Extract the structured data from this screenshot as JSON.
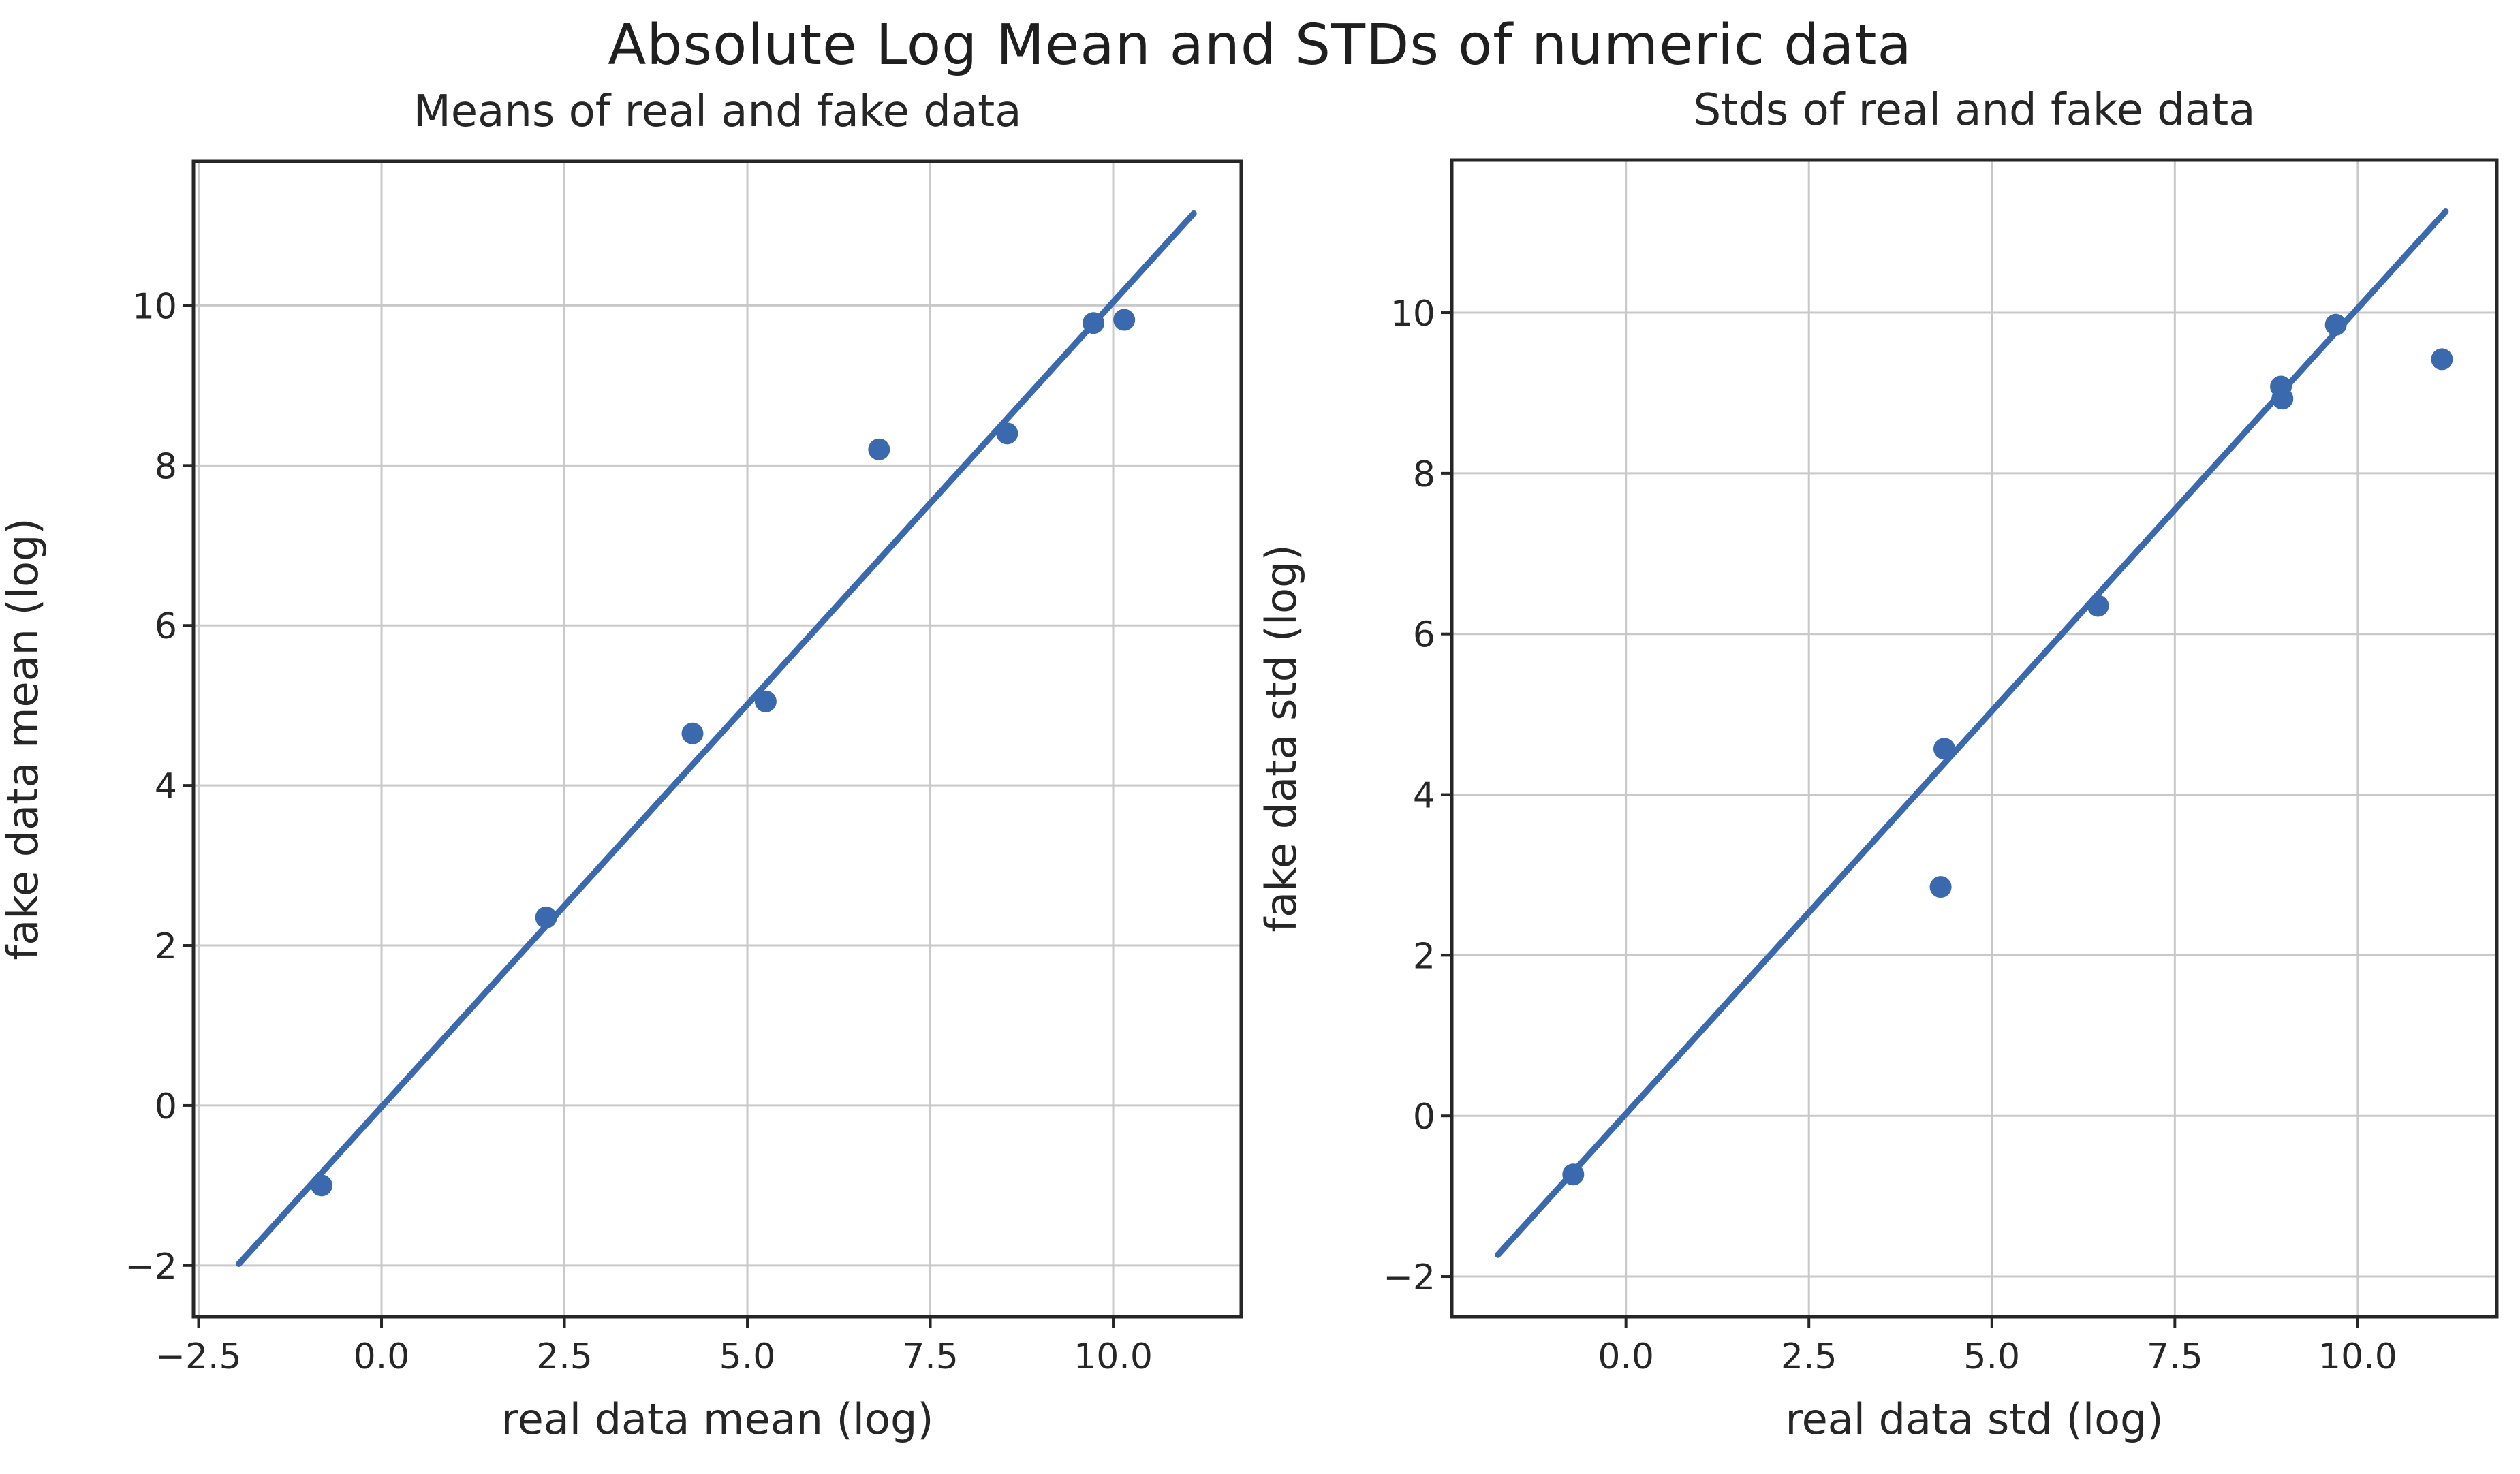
{
  "figure": {
    "title": "Absolute Log Mean and STDs of numeric data",
    "background_color": "#ffffff",
    "text_color": "#262626",
    "accent_color": "#3b69ae",
    "grid_color": "#c9c9c9",
    "spine_color": "#262626"
  },
  "chart_data": [
    {
      "type": "scatter",
      "title": "Means of real and fake data",
      "xlabel": "real data mean (log)",
      "ylabel": "fake data mean (log)",
      "xlim": [
        -2.57,
        11.75
      ],
      "ylim": [
        -2.64,
        11.8
      ],
      "xticks": [
        -2.5,
        0.0,
        2.5,
        5.0,
        7.5,
        10.0
      ],
      "xtick_labels": [
        "−2.5",
        "0.0",
        "2.5",
        "5.0",
        "7.5",
        "10.0"
      ],
      "yticks": [
        -2,
        0,
        2,
        4,
        6,
        8,
        10
      ],
      "ytick_labels": [
        "−2",
        "0",
        "2",
        "4",
        "6",
        "8",
        "10"
      ],
      "grid": true,
      "legend": "none",
      "points": [
        [
          -0.82,
          -1.0
        ],
        [
          2.25,
          2.35
        ],
        [
          4.25,
          4.65
        ],
        [
          5.25,
          5.05
        ],
        [
          6.8,
          8.2
        ],
        [
          8.55,
          8.4
        ],
        [
          9.73,
          9.78
        ],
        [
          10.15,
          9.82
        ]
      ],
      "trend_line": {
        "x1": -1.95,
        "y1": -1.98,
        "x2": 11.1,
        "y2": 11.15
      }
    },
    {
      "type": "scatter",
      "title": "Stds of real and fake data",
      "xlabel": "real data std (log)",
      "ylabel": "fake data std (log)",
      "xlim": [
        -2.38,
        11.9
      ],
      "ylim": [
        -2.5,
        11.9
      ],
      "xticks": [
        0.0,
        2.5,
        5.0,
        7.5,
        10.0
      ],
      "xtick_labels": [
        "0.0",
        "2.5",
        "5.0",
        "7.5",
        "10.0"
      ],
      "yticks": [
        -2,
        0,
        2,
        4,
        6,
        8,
        10
      ],
      "ytick_labels": [
        "−2",
        "0",
        "2",
        "4",
        "6",
        "8",
        "10"
      ],
      "grid": true,
      "legend": "none",
      "points": [
        [
          -0.72,
          -0.73
        ],
        [
          4.35,
          4.57
        ],
        [
          4.3,
          2.85
        ],
        [
          6.45,
          6.35
        ],
        [
          8.95,
          9.08
        ],
        [
          8.97,
          8.93
        ],
        [
          9.7,
          9.85
        ],
        [
          11.15,
          9.42
        ]
      ],
      "trend_line": {
        "x1": -1.75,
        "y1": -1.73,
        "x2": 11.2,
        "y2": 11.26
      }
    }
  ]
}
